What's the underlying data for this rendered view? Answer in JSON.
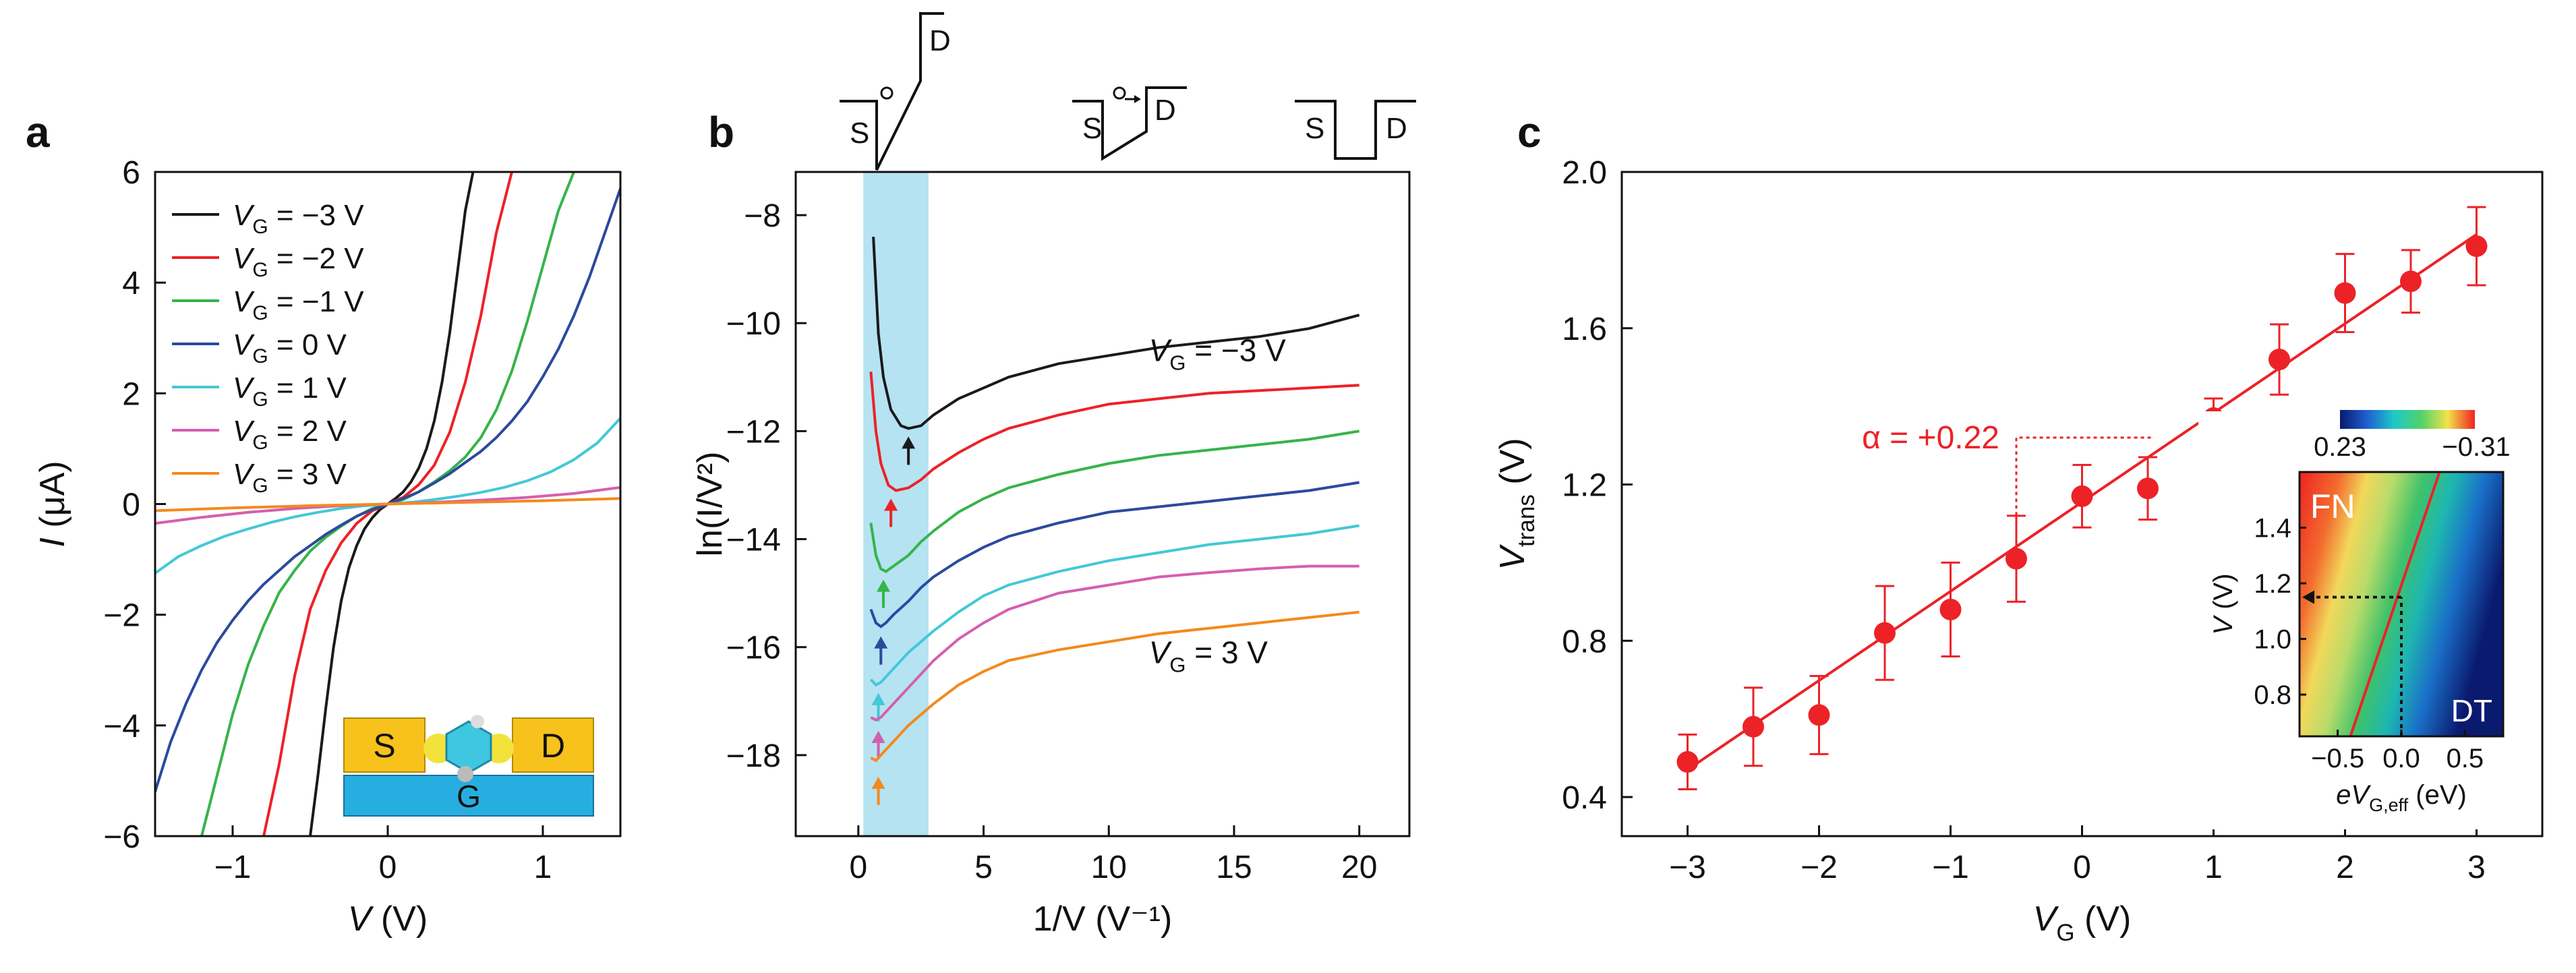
{
  "panels": {
    "a": {
      "label": "a"
    },
    "b": {
      "label": "b"
    },
    "c": {
      "label": "c"
    }
  },
  "colors": {
    "black": "#1a1a1a",
    "red": "#ec2227",
    "green": "#36b44a",
    "blue": "#2b4a9e",
    "cyan": "#43c8d6",
    "magenta": "#d45fb0",
    "orange": "#f38a1d",
    "shade": "#a8def0",
    "gold": "#f7c21b",
    "gate": "#27aee0",
    "molecule": "#3fc6e0"
  },
  "chart_data": [
    {
      "panel": "a",
      "type": "line",
      "xlabel": {
        "main": "V",
        "unit": " (V)"
      },
      "ylabel": {
        "main": "I",
        "unit": " (μA)"
      },
      "xlim": [
        -1.5,
        1.5
      ],
      "ylim": [
        -6,
        6
      ],
      "xticks": [
        -1,
        0,
        1
      ],
      "xtick_labels": [
        "−1",
        "0",
        "1"
      ],
      "yticks": [
        -6,
        -4,
        -2,
        0,
        2,
        4,
        6
      ],
      "ytick_labels": [
        "−6",
        "−4",
        "−2",
        "0",
        "2",
        "4",
        "6"
      ],
      "legend_position": "top-left",
      "legend_prefix": "V",
      "legend_sub": "G",
      "series": [
        {
          "name": "= −3 V",
          "color": "black",
          "x": [
            -0.5,
            -0.45,
            -0.4,
            -0.35,
            -0.3,
            -0.25,
            -0.2,
            -0.15,
            -0.1,
            -0.05,
            0,
            0.05,
            0.1,
            0.15,
            0.2,
            0.25,
            0.3,
            0.35,
            0.4,
            0.45,
            0.5,
            0.55
          ],
          "y": [
            -6,
            -4.9,
            -3.7,
            -2.6,
            -1.75,
            -1.15,
            -0.75,
            -0.45,
            -0.25,
            -0.1,
            0,
            0.1,
            0.22,
            0.4,
            0.65,
            1.0,
            1.5,
            2.2,
            3.1,
            4.2,
            5.3,
            6
          ]
        },
        {
          "name": "= −2 V",
          "color": "red",
          "x": [
            -0.8,
            -0.7,
            -0.6,
            -0.5,
            -0.4,
            -0.3,
            -0.2,
            -0.1,
            0,
            0.1,
            0.2,
            0.3,
            0.4,
            0.5,
            0.6,
            0.7,
            0.8
          ],
          "y": [
            -6,
            -4.7,
            -3.1,
            -1.9,
            -1.2,
            -0.7,
            -0.35,
            -0.12,
            0,
            0.12,
            0.35,
            0.7,
            1.3,
            2.2,
            3.4,
            4.9,
            6
          ]
        },
        {
          "name": "= −1 V",
          "color": "green",
          "x": [
            -1.2,
            -1.1,
            -1.0,
            -0.9,
            -0.8,
            -0.7,
            -0.6,
            -0.5,
            -0.4,
            -0.3,
            -0.2,
            -0.1,
            0,
            0.1,
            0.2,
            0.3,
            0.4,
            0.5,
            0.6,
            0.7,
            0.8,
            0.9,
            1.0,
            1.1,
            1.2
          ],
          "y": [
            -6,
            -4.9,
            -3.8,
            -2.9,
            -2.2,
            -1.6,
            -1.2,
            -0.85,
            -0.6,
            -0.4,
            -0.22,
            -0.08,
            0,
            0.08,
            0.22,
            0.4,
            0.6,
            0.85,
            1.2,
            1.7,
            2.4,
            3.3,
            4.3,
            5.3,
            6
          ]
        },
        {
          "name": "= 0 V",
          "color": "blue",
          "x": [
            -1.5,
            -1.4,
            -1.3,
            -1.2,
            -1.1,
            -1.0,
            -0.9,
            -0.8,
            -0.7,
            -0.6,
            -0.5,
            -0.4,
            -0.3,
            -0.2,
            -0.1,
            0,
            0.1,
            0.2,
            0.3,
            0.4,
            0.5,
            0.6,
            0.7,
            0.8,
            0.9,
            1.0,
            1.1,
            1.2,
            1.3,
            1.4,
            1.5
          ],
          "y": [
            -5.2,
            -4.3,
            -3.6,
            -3.0,
            -2.5,
            -2.1,
            -1.75,
            -1.45,
            -1.2,
            -0.95,
            -0.75,
            -0.55,
            -0.38,
            -0.22,
            -0.1,
            0,
            0.1,
            0.22,
            0.38,
            0.55,
            0.75,
            0.95,
            1.2,
            1.5,
            1.85,
            2.3,
            2.8,
            3.4,
            4.1,
            4.9,
            5.7
          ]
        },
        {
          "name": "= 1 V",
          "color": "cyan",
          "x": [
            -1.5,
            -1.35,
            -1.2,
            -1.05,
            -0.9,
            -0.75,
            -0.6,
            -0.45,
            -0.3,
            -0.15,
            0,
            0.15,
            0.3,
            0.45,
            0.6,
            0.75,
            0.9,
            1.05,
            1.2,
            1.35,
            1.5
          ],
          "y": [
            -1.25,
            -0.95,
            -0.75,
            -0.58,
            -0.45,
            -0.33,
            -0.23,
            -0.15,
            -0.08,
            -0.03,
            0,
            0.03,
            0.08,
            0.14,
            0.21,
            0.3,
            0.42,
            0.58,
            0.8,
            1.1,
            1.55
          ]
        },
        {
          "name": "= 2 V",
          "color": "magenta",
          "x": [
            -1.5,
            -1.2,
            -0.9,
            -0.6,
            -0.3,
            0,
            0.3,
            0.6,
            0.9,
            1.2,
            1.5
          ],
          "y": [
            -0.35,
            -0.24,
            -0.15,
            -0.08,
            -0.03,
            0,
            0.03,
            0.07,
            0.12,
            0.19,
            0.3
          ]
        },
        {
          "name": "= 3 V",
          "color": "orange",
          "x": [
            -1.5,
            -1.0,
            -0.5,
            0,
            0.5,
            1.0,
            1.5
          ],
          "y": [
            -0.12,
            -0.07,
            -0.03,
            0,
            0.03,
            0.06,
            0.1
          ]
        }
      ],
      "inset": {
        "source": "S",
        "drain": "D",
        "gate": "G"
      }
    },
    {
      "panel": "b",
      "type": "line",
      "xlabel": {
        "main": "1/V",
        "unit": " (V⁻¹)"
      },
      "ylabel": {
        "main": "ln(I/V²)"
      },
      "xlim": [
        -2.5,
        22
      ],
      "ylim": [
        -19.5,
        -7.2
      ],
      "xticks": [
        0,
        5,
        10,
        15,
        20
      ],
      "xtick_labels": [
        "0",
        "5",
        "10",
        "15",
        "20"
      ],
      "yticks": [
        -8,
        -10,
        -12,
        -14,
        -16,
        -18
      ],
      "ytick_labels": [
        "−8",
        "−10",
        "−12",
        "−14",
        "−16",
        "−18"
      ],
      "shaded_region_x": [
        0.2,
        2.8
      ],
      "annotations": [
        {
          "prefix": "V",
          "sub": "G",
          "text": " = −3 V",
          "x": 11.6,
          "y": -10.7
        },
        {
          "prefix": "V",
          "sub": "G",
          "text": " = 3 V",
          "x": 11.6,
          "y": -16.3
        }
      ],
      "series": [
        {
          "color": "black",
          "x": [
            0.6,
            0.8,
            1.0,
            1.3,
            1.7,
            2.0,
            2.5,
            3,
            4,
            5,
            6,
            8,
            10,
            12,
            14,
            16,
            18,
            20
          ],
          "y": [
            -8.4,
            -10.2,
            -11.0,
            -11.6,
            -11.9,
            -11.95,
            -11.9,
            -11.7,
            -11.4,
            -11.2,
            -11.0,
            -10.75,
            -10.6,
            -10.45,
            -10.35,
            -10.25,
            -10.1,
            -9.85
          ],
          "arrow_x": 2.0,
          "arrow_y": -12.25
        },
        {
          "color": "red",
          "x": [
            0.5,
            0.7,
            0.9,
            1.2,
            1.5,
            2.0,
            2.5,
            3,
            4,
            5,
            6,
            8,
            10,
            12,
            14,
            16,
            18,
            20
          ],
          "y": [
            -10.9,
            -12.0,
            -12.6,
            -13.0,
            -13.1,
            -13.05,
            -12.9,
            -12.7,
            -12.4,
            -12.15,
            -11.95,
            -11.7,
            -11.5,
            -11.4,
            -11.3,
            -11.25,
            -11.2,
            -11.15
          ],
          "arrow_x": 1.3,
          "arrow_y": -13.4
        },
        {
          "color": "green",
          "x": [
            0.5,
            0.7,
            0.9,
            1.1,
            1.4,
            2.0,
            2.5,
            3,
            4,
            5,
            6,
            8,
            10,
            12,
            14,
            16,
            18,
            20
          ],
          "y": [
            -13.7,
            -14.3,
            -14.55,
            -14.6,
            -14.5,
            -14.3,
            -14.05,
            -13.85,
            -13.5,
            -13.25,
            -13.05,
            -12.8,
            -12.6,
            -12.45,
            -12.35,
            -12.25,
            -12.15,
            -12.0
          ],
          "arrow_x": 1.0,
          "arrow_y": -14.9
        },
        {
          "color": "blue",
          "x": [
            0.5,
            0.7,
            0.9,
            1.1,
            1.4,
            2.0,
            2.5,
            3,
            4,
            5,
            6,
            8,
            10,
            12,
            14,
            16,
            18,
            20
          ],
          "y": [
            -15.3,
            -15.55,
            -15.62,
            -15.55,
            -15.4,
            -15.15,
            -14.9,
            -14.7,
            -14.4,
            -14.15,
            -13.95,
            -13.7,
            -13.5,
            -13.4,
            -13.3,
            -13.2,
            -13.1,
            -12.95
          ],
          "arrow_x": 0.9,
          "arrow_y": -15.95
        },
        {
          "color": "cyan",
          "x": [
            0.5,
            0.7,
            0.9,
            1.2,
            1.6,
            2.0,
            2.5,
            3,
            4,
            5,
            6,
            8,
            10,
            12,
            14,
            16,
            18,
            20
          ],
          "y": [
            -16.6,
            -16.7,
            -16.65,
            -16.5,
            -16.3,
            -16.1,
            -15.9,
            -15.7,
            -15.35,
            -15.05,
            -14.85,
            -14.6,
            -14.4,
            -14.25,
            -14.1,
            -14.0,
            -13.9,
            -13.75
          ],
          "arrow_x": 0.8,
          "arrow_y": -17.0
        },
        {
          "color": "magenta",
          "x": [
            0.5,
            0.7,
            0.9,
            1.2,
            1.6,
            2.0,
            2.5,
            3,
            4,
            5,
            6,
            8,
            10,
            12,
            14,
            16,
            18,
            20
          ],
          "y": [
            -17.3,
            -17.35,
            -17.3,
            -17.15,
            -16.95,
            -16.75,
            -16.5,
            -16.25,
            -15.85,
            -15.55,
            -15.3,
            -15.0,
            -14.85,
            -14.7,
            -14.62,
            -14.55,
            -14.5,
            -14.5
          ],
          "arrow_x": 0.8,
          "arrow_y": -17.7
        },
        {
          "color": "orange",
          "x": [
            0.5,
            0.7,
            0.9,
            1.2,
            1.6,
            2.0,
            2.5,
            3,
            4,
            5,
            6,
            8,
            10,
            12,
            14,
            16,
            18,
            20
          ],
          "y": [
            -18.05,
            -18.1,
            -18.0,
            -17.85,
            -17.65,
            -17.45,
            -17.25,
            -17.05,
            -16.7,
            -16.45,
            -16.25,
            -16.05,
            -15.9,
            -15.75,
            -15.65,
            -15.55,
            -15.45,
            -15.35
          ],
          "arrow_x": 0.8,
          "arrow_y": -18.55
        }
      ],
      "band_diagrams": [
        {
          "source": "S",
          "drain": "D"
        },
        {
          "source": "S",
          "drain": "D"
        },
        {
          "source": "S",
          "drain": "D"
        }
      ]
    },
    {
      "panel": "c",
      "type": "scatter",
      "xlabel": {
        "main": "V",
        "sub": "G",
        "unit": " (V)"
      },
      "ylabel": {
        "main": "V",
        "sub": "trans",
        "unit": " (V)"
      },
      "xlim": [
        -3.5,
        3.5
      ],
      "ylim": [
        0.3,
        2.0
      ],
      "xticks": [
        -3,
        -2,
        -1,
        0,
        1,
        2,
        3
      ],
      "xtick_labels": [
        "−3",
        "−2",
        "−1",
        "0",
        "1",
        "2",
        "3"
      ],
      "yticks": [
        0.4,
        0.8,
        1.2,
        1.6,
        2.0
      ],
      "ytick_labels": [
        "0.4",
        "0.8",
        "1.2",
        "1.6",
        "2.0"
      ],
      "points": {
        "x": [
          -3,
          -2.5,
          -2,
          -1.5,
          -1,
          -0.5,
          0,
          0.5,
          1,
          1.5,
          2,
          2.5,
          3
        ],
        "y": [
          0.49,
          0.58,
          0.61,
          0.82,
          0.88,
          1.01,
          1.17,
          1.19,
          1.37,
          1.52,
          1.69,
          1.72,
          1.81
        ],
        "err": [
          0.07,
          0.1,
          0.1,
          0.12,
          0.12,
          0.11,
          0.08,
          0.08,
          0.05,
          0.09,
          0.1,
          0.08,
          0.1
        ]
      },
      "fit": {
        "x": [
          -3,
          3
        ],
        "y": [
          0.47,
          1.84
        ]
      },
      "alpha_annotation": {
        "text": "α = +0.22",
        "corner": [
          -0.5,
          1.32
        ],
        "end_x": 0.55
      },
      "inset": {
        "type": "heatmap",
        "xlabel": {
          "main": "eV",
          "sub": "G,eff",
          "unit": " (eV)"
        },
        "ylabel": {
          "main": "V",
          "unit": " (V)"
        },
        "xlim": [
          -0.8,
          0.8
        ],
        "ylim": [
          0.65,
          1.6
        ],
        "xticks": [
          -0.5,
          0.0,
          0.5
        ],
        "xtick_labels": [
          "−0.5",
          "0.0",
          "0.5"
        ],
        "yticks": [
          0.8,
          1.0,
          1.2,
          1.4
        ],
        "ytick_labels": [
          "0.8",
          "1.0",
          "1.2",
          "1.4"
        ],
        "colorbar_labels": [
          "0.23",
          "−0.31"
        ],
        "region_labels": [
          "FN",
          "DT"
        ],
        "dotted_point": [
          0.0,
          1.15
        ]
      }
    }
  ]
}
